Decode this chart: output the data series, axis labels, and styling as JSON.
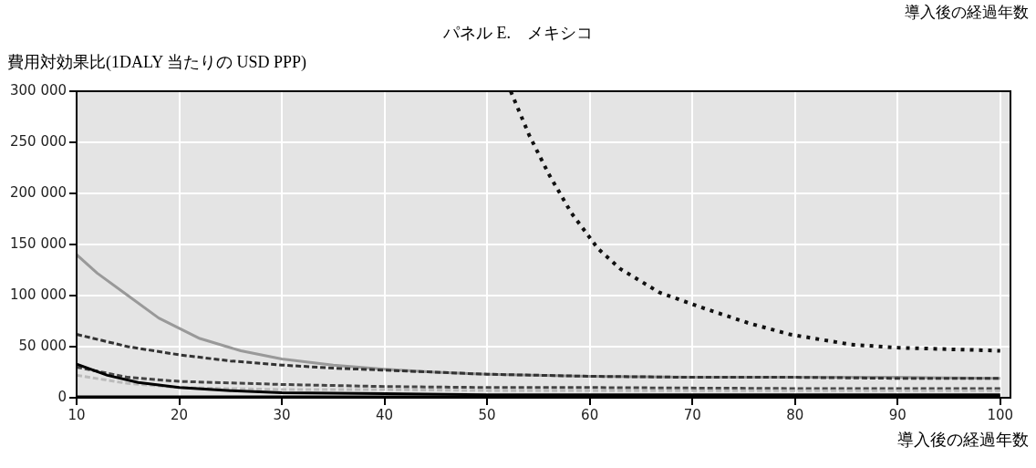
{
  "chart_data": {
    "type": "line",
    "title": "パネル E.　メキシコ",
    "ylabel": "費用対効果比(1DALY 当たりの USD PPP)",
    "xlabel": "導入後の経過年数",
    "annotations": [
      "導入後の経過年数"
    ],
    "xlim": [
      10,
      101
    ],
    "xticks": [
      10,
      20,
      30,
      40,
      50,
      60,
      70,
      80,
      90,
      100
    ],
    "ylim": [
      0,
      300000
    ],
    "yticks": [
      {
        "value": 0,
        "label": "0"
      },
      {
        "value": 50000,
        "label": "50 000"
      },
      {
        "value": 100000,
        "label": "100 000"
      },
      {
        "value": 150000,
        "label": "150 000"
      },
      {
        "value": 200000,
        "label": "200 000"
      },
      {
        "value": 250000,
        "label": "250 000"
      },
      {
        "value": 300000,
        "label": "300 000"
      }
    ],
    "grid": true,
    "legend": false,
    "series": [
      {
        "color": "#999999",
        "line_style": "solid",
        "x": [
          10,
          12,
          15,
          18,
          22,
          26,
          30,
          35,
          40,
          45,
          50,
          60,
          70,
          80,
          90,
          100
        ],
        "values": [
          140000,
          122000,
          100000,
          78000,
          58000,
          46000,
          38000,
          32000,
          28000,
          25000,
          23000,
          21000,
          20000,
          20000,
          20000,
          19000
        ]
      },
      {
        "color": "#333333",
        "line_style": "dashed",
        "x": [
          10,
          15,
          20,
          25,
          30,
          35,
          40,
          45,
          50,
          60,
          70,
          80,
          90,
          100
        ],
        "values": [
          62000,
          50000,
          42000,
          36000,
          32000,
          29000,
          27000,
          25000,
          23000,
          21000,
          20000,
          20000,
          19000,
          19000
        ]
      },
      {
        "color": "#111111",
        "line_style": "dotted",
        "x": [
          52.3,
          54.1,
          56,
          58.2,
          60.8,
          63,
          66.8,
          71,
          75.5,
          79.5,
          85.5,
          90,
          100
        ],
        "values": [
          300000,
          257000,
          219000,
          181000,
          146000,
          126000,
          103000,
          88000,
          73000,
          62000,
          52000,
          49000,
          46000
        ]
      },
      {
        "color": "#444444",
        "line_style": "dashed",
        "x": [
          10,
          15,
          20,
          30,
          40,
          50,
          60,
          80,
          100
        ],
        "values": [
          30000,
          20000,
          16000,
          13000,
          11000,
          10000,
          10000,
          9000,
          9000
        ]
      },
      {
        "color": "#bbbbbb",
        "line_style": "dashed",
        "x": [
          10,
          15,
          20,
          30,
          40,
          50,
          70,
          100
        ],
        "values": [
          22000,
          14000,
          10000,
          8000,
          8000,
          7000,
          7000,
          7000
        ]
      },
      {
        "color": "#000000",
        "line_style": "solid",
        "x": [
          10,
          13,
          16,
          20,
          25,
          30,
          40,
          50,
          70,
          100
        ],
        "values": [
          33000,
          22000,
          15000,
          10000,
          7000,
          5000,
          4000,
          3000,
          3000,
          3000
        ]
      },
      {
        "color": "#000000",
        "line_style": "solid",
        "x": [
          10,
          20,
          40,
          70,
          100
        ],
        "values": [
          1000,
          1000,
          1000,
          1000,
          1000
        ]
      }
    ]
  }
}
